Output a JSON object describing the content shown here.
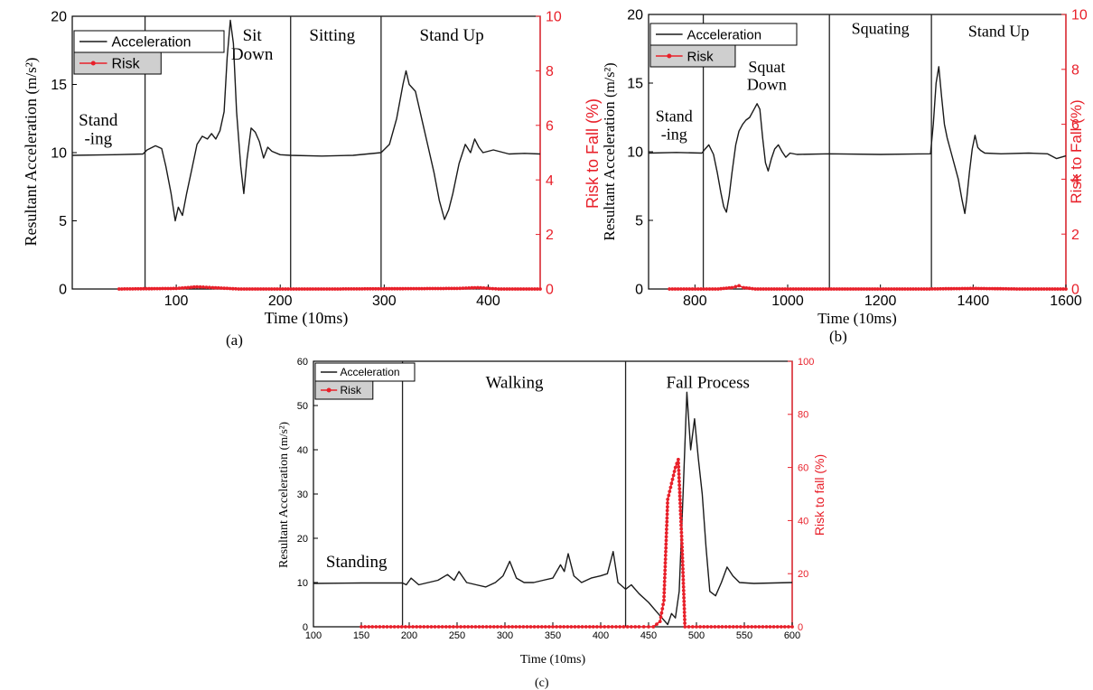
{
  "chart_data": [
    {
      "panel": "(a)",
      "type": "line",
      "xlabel": "Time (10ms)",
      "ylabel": "Resultant Acceleration",
      "ylabel_unit": "(m/s²)",
      "y2label": "Risk to Fall",
      "y2label_unit": "(%)",
      "xlim": [
        0,
        450
      ],
      "ylim": [
        0,
        20
      ],
      "y2lim": [
        0,
        10
      ],
      "xticks": [
        100,
        200,
        300,
        400
      ],
      "yticks": [
        0,
        5,
        10,
        15,
        20
      ],
      "y2ticks": [
        0,
        2,
        4,
        6,
        8,
        10
      ],
      "legend": [
        "Acceleration",
        "Risk"
      ],
      "legend_position": "top-left",
      "colors": {
        "acceleration": "#1a1a1a",
        "risk": "#e8202a",
        "axis_right": "#e8202a"
      },
      "phase_lines": [
        70,
        210,
        297
      ],
      "phases": [
        {
          "lines": [
            "Stand",
            "-ing"
          ],
          "x": 25,
          "y": 12.0
        },
        {
          "lines": [
            "Sit",
            "Down"
          ],
          "x": 173,
          "y": 18.2
        },
        {
          "lines": [
            "Sitting"
          ],
          "x": 250,
          "y": 18.2
        },
        {
          "lines": [
            "Stand Up"
          ],
          "x": 365,
          "y": 18.2
        }
      ],
      "series": [
        {
          "name": "Acceleration",
          "axis": "left",
          "points": [
            [
              0,
              9.8
            ],
            [
              40,
              9.85
            ],
            [
              68,
              9.9
            ],
            [
              72,
              10.2
            ],
            [
              80,
              10.5
            ],
            [
              86,
              10.3
            ],
            [
              90,
              9.0
            ],
            [
              95,
              7.0
            ],
            [
              99,
              5.0
            ],
            [
              102,
              6.0
            ],
            [
              106,
              5.4
            ],
            [
              110,
              7.0
            ],
            [
              115,
              8.8
            ],
            [
              120,
              10.6
            ],
            [
              125,
              11.2
            ],
            [
              130,
              11.0
            ],
            [
              134,
              11.4
            ],
            [
              138,
              11.0
            ],
            [
              142,
              11.6
            ],
            [
              146,
              13.0
            ],
            [
              149,
              17.0
            ],
            [
              152,
              19.7
            ],
            [
              155,
              18.0
            ],
            [
              158,
              13.0
            ],
            [
              162,
              9.0
            ],
            [
              165,
              7.0
            ],
            [
              168,
              9.5
            ],
            [
              172,
              11.8
            ],
            [
              176,
              11.5
            ],
            [
              180,
              10.8
            ],
            [
              184,
              9.6
            ],
            [
              188,
              10.4
            ],
            [
              192,
              10.1
            ],
            [
              200,
              9.85
            ],
            [
              210,
              9.8
            ],
            [
              240,
              9.75
            ],
            [
              270,
              9.8
            ],
            [
              297,
              10.0
            ],
            [
              305,
              10.6
            ],
            [
              312,
              12.5
            ],
            [
              318,
              15.0
            ],
            [
              321,
              16.0
            ],
            [
              324,
              15.0
            ],
            [
              330,
              14.5
            ],
            [
              336,
              12.5
            ],
            [
              342,
              10.5
            ],
            [
              348,
              8.5
            ],
            [
              353,
              6.5
            ],
            [
              358,
              5.1
            ],
            [
              362,
              5.8
            ],
            [
              366,
              7.0
            ],
            [
              372,
              9.2
            ],
            [
              378,
              10.6
            ],
            [
              383,
              10.0
            ],
            [
              387,
              11.0
            ],
            [
              391,
              10.4
            ],
            [
              395,
              10.0
            ],
            [
              405,
              10.2
            ],
            [
              420,
              9.9
            ],
            [
              435,
              9.95
            ],
            [
              450,
              9.9
            ]
          ]
        },
        {
          "name": "Risk",
          "axis": "right",
          "points": [
            [
              45,
              0
            ],
            [
              100,
              0.02
            ],
            [
              120,
              0.08
            ],
            [
              135,
              0.05
            ],
            [
              160,
              0.0
            ],
            [
              250,
              0.0
            ],
            [
              370,
              0.02
            ],
            [
              390,
              0.05
            ],
            [
              410,
              0.0
            ],
            [
              450,
              0.0
            ]
          ]
        }
      ]
    },
    {
      "panel": "(b)",
      "type": "line",
      "xlabel": "Time (10ms)",
      "ylabel": "Resultant Acceleration",
      "ylabel_unit": "(m/s²)",
      "y2label": "Risk to Fall",
      "y2label_unit": "(%)",
      "xlim": [
        700,
        1600
      ],
      "ylim": [
        0,
        20
      ],
      "y2lim": [
        0,
        10
      ],
      "xticks": [
        800,
        1000,
        1200,
        1400,
        1600
      ],
      "yticks": [
        0,
        5,
        10,
        15,
        20
      ],
      "y2ticks": [
        0,
        2,
        4,
        6,
        8,
        10
      ],
      "legend": [
        "Acceleration",
        "Risk"
      ],
      "legend_position": "top-left",
      "colors": {
        "acceleration": "#1a1a1a",
        "risk": "#e8202a",
        "axis_right": "#e8202a"
      },
      "phase_lines": [
        818,
        1090,
        1310
      ],
      "phases": [
        {
          "lines": [
            "Stand",
            "-ing"
          ],
          "x": 755,
          "y": 12.2
        },
        {
          "lines": [
            "Squat",
            "Down"
          ],
          "x": 955,
          "y": 15.8
        },
        {
          "lines": [
            "Squating"
          ],
          "x": 1200,
          "y": 18.6
        },
        {
          "lines": [
            "Stand Up"
          ],
          "x": 1455,
          "y": 18.4
        }
      ],
      "series": [
        {
          "name": "Acceleration",
          "axis": "left",
          "points": [
            [
              700,
              9.9
            ],
            [
              760,
              9.95
            ],
            [
              815,
              9.9
            ],
            [
              822,
              10.2
            ],
            [
              830,
              10.5
            ],
            [
              840,
              9.8
            ],
            [
              848,
              8.5
            ],
            [
              856,
              7.0
            ],
            [
              862,
              6.0
            ],
            [
              868,
              5.6
            ],
            [
              874,
              6.8
            ],
            [
              880,
              8.5
            ],
            [
              888,
              10.5
            ],
            [
              895,
              11.5
            ],
            [
              903,
              12.0
            ],
            [
              910,
              12.3
            ],
            [
              918,
              12.5
            ],
            [
              926,
              13.0
            ],
            [
              934,
              13.5
            ],
            [
              940,
              13.1
            ],
            [
              946,
              11.0
            ],
            [
              952,
              9.2
            ],
            [
              958,
              8.6
            ],
            [
              965,
              9.5
            ],
            [
              972,
              10.2
            ],
            [
              980,
              10.5
            ],
            [
              988,
              10.0
            ],
            [
              996,
              9.6
            ],
            [
              1005,
              9.9
            ],
            [
              1020,
              9.8
            ],
            [
              1090,
              9.85
            ],
            [
              1200,
              9.8
            ],
            [
              1308,
              9.85
            ],
            [
              1314,
              12.0
            ],
            [
              1320,
              15.0
            ],
            [
              1326,
              16.2
            ],
            [
              1332,
              14.0
            ],
            [
              1338,
              12.0
            ],
            [
              1344,
              11.0
            ],
            [
              1352,
              10.0
            ],
            [
              1360,
              9.0
            ],
            [
              1368,
              8.0
            ],
            [
              1376,
              6.5
            ],
            [
              1382,
              5.5
            ],
            [
              1386,
              6.5
            ],
            [
              1392,
              8.5
            ],
            [
              1398,
              10.2
            ],
            [
              1404,
              11.2
            ],
            [
              1410,
              10.3
            ],
            [
              1416,
              10.1
            ],
            [
              1425,
              9.9
            ],
            [
              1460,
              9.85
            ],
            [
              1520,
              9.9
            ],
            [
              1560,
              9.85
            ],
            [
              1580,
              9.5
            ],
            [
              1600,
              9.7
            ]
          ]
        },
        {
          "name": "Risk",
          "axis": "right",
          "points": [
            [
              745,
              0
            ],
            [
              850,
              0.0
            ],
            [
              880,
              0.05
            ],
            [
              895,
              0.12
            ],
            [
              905,
              0.05
            ],
            [
              930,
              0.0
            ],
            [
              1100,
              0.0
            ],
            [
              1300,
              0.0
            ],
            [
              1400,
              0.02
            ],
            [
              1500,
              0.0
            ],
            [
              1600,
              0.0
            ]
          ]
        }
      ]
    },
    {
      "panel": "(c)",
      "type": "line",
      "xlabel": "Time (10ms)",
      "ylabel": "Resultant Acceleration",
      "ylabel_unit": "(m/s²)",
      "y2label": "Risk to fall",
      "y2label_unit": "(%)",
      "xlim": [
        100,
        600
      ],
      "ylim": [
        0,
        60
      ],
      "y2lim": [
        0,
        100
      ],
      "xticks": [
        100,
        150,
        200,
        250,
        300,
        350,
        400,
        450,
        500,
        550,
        600
      ],
      "yticks": [
        0,
        10,
        20,
        30,
        40,
        50,
        60
      ],
      "y2ticks": [
        0,
        20,
        40,
        60,
        80,
        100
      ],
      "legend": [
        "Acceleration",
        "Risk"
      ],
      "legend_position": "top-left",
      "colors": {
        "acceleration": "#1a1a1a",
        "risk": "#e8202a",
        "axis_right": "#e8202a"
      },
      "phase_lines": [
        193,
        426
      ],
      "phases": [
        {
          "lines": [
            "Standing"
          ],
          "x": 145,
          "y": 13.5
        },
        {
          "lines": [
            "Walking"
          ],
          "x": 310,
          "y": 54.0
        },
        {
          "lines": [
            "Fall Process"
          ],
          "x": 512,
          "y": 54.0
        }
      ],
      "series": [
        {
          "name": "Acceleration",
          "axis": "left",
          "points": [
            [
              100,
              9.8
            ],
            [
              150,
              9.9
            ],
            [
              193,
              9.9
            ],
            [
              197,
              9.5
            ],
            [
              202,
              11.0
            ],
            [
              210,
              9.5
            ],
            [
              220,
              10.0
            ],
            [
              230,
              10.5
            ],
            [
              240,
              11.8
            ],
            [
              247,
              10.5
            ],
            [
              252,
              12.5
            ],
            [
              260,
              10.0
            ],
            [
              270,
              9.5
            ],
            [
              280,
              9.0
            ],
            [
              290,
              10.0
            ],
            [
              298,
              11.5
            ],
            [
              305,
              14.8
            ],
            [
              312,
              11.0
            ],
            [
              320,
              10.0
            ],
            [
              330,
              10.0
            ],
            [
              340,
              10.5
            ],
            [
              350,
              11.0
            ],
            [
              358,
              14.0
            ],
            [
              362,
              12.5
            ],
            [
              366,
              16.5
            ],
            [
              372,
              11.5
            ],
            [
              380,
              10.0
            ],
            [
              390,
              11.0
            ],
            [
              400,
              11.5
            ],
            [
              407,
              12.0
            ],
            [
              413,
              17.0
            ],
            [
              418,
              10.0
            ],
            [
              426,
              8.5
            ],
            [
              432,
              9.5
            ],
            [
              440,
              7.5
            ],
            [
              450,
              5.5
            ],
            [
              458,
              3.5
            ],
            [
              464,
              2.0
            ],
            [
              470,
              0.5
            ],
            [
              474,
              3.0
            ],
            [
              478,
              2.0
            ],
            [
              482,
              8.0
            ],
            [
              486,
              30.0
            ],
            [
              490,
              53.0
            ],
            [
              494,
              40.0
            ],
            [
              498,
              47.0
            ],
            [
              502,
              38.0
            ],
            [
              506,
              30.0
            ],
            [
              510,
              18.0
            ],
            [
              514,
              8.0
            ],
            [
              520,
              7.0
            ],
            [
              526,
              10.0
            ],
            [
              532,
              13.5
            ],
            [
              538,
              11.5
            ],
            [
              545,
              10.0
            ],
            [
              560,
              9.8
            ],
            [
              580,
              9.9
            ],
            [
              600,
              10.0
            ]
          ]
        },
        {
          "name": "Risk",
          "axis": "right",
          "points": [
            [
              150,
              0
            ],
            [
              200,
              0
            ],
            [
              250,
              0
            ],
            [
              300,
              0
            ],
            [
              350,
              0
            ],
            [
              400,
              0
            ],
            [
              440,
              0
            ],
            [
              455,
              0
            ],
            [
              462,
              2
            ],
            [
              466,
              10
            ],
            [
              470,
              48
            ],
            [
              474,
              54
            ],
            [
              478,
              60
            ],
            [
              481,
              63
            ],
            [
              485,
              30
            ],
            [
              488,
              0
            ],
            [
              500,
              0
            ],
            [
              550,
              0
            ],
            [
              600,
              0
            ]
          ]
        }
      ]
    }
  ],
  "labels": {
    "acceleration_legend": "Acceleration",
    "risk_legend": "Risk",
    "panel_a": "(a)",
    "panel_b": "(b)",
    "panel_c": "(c)"
  }
}
